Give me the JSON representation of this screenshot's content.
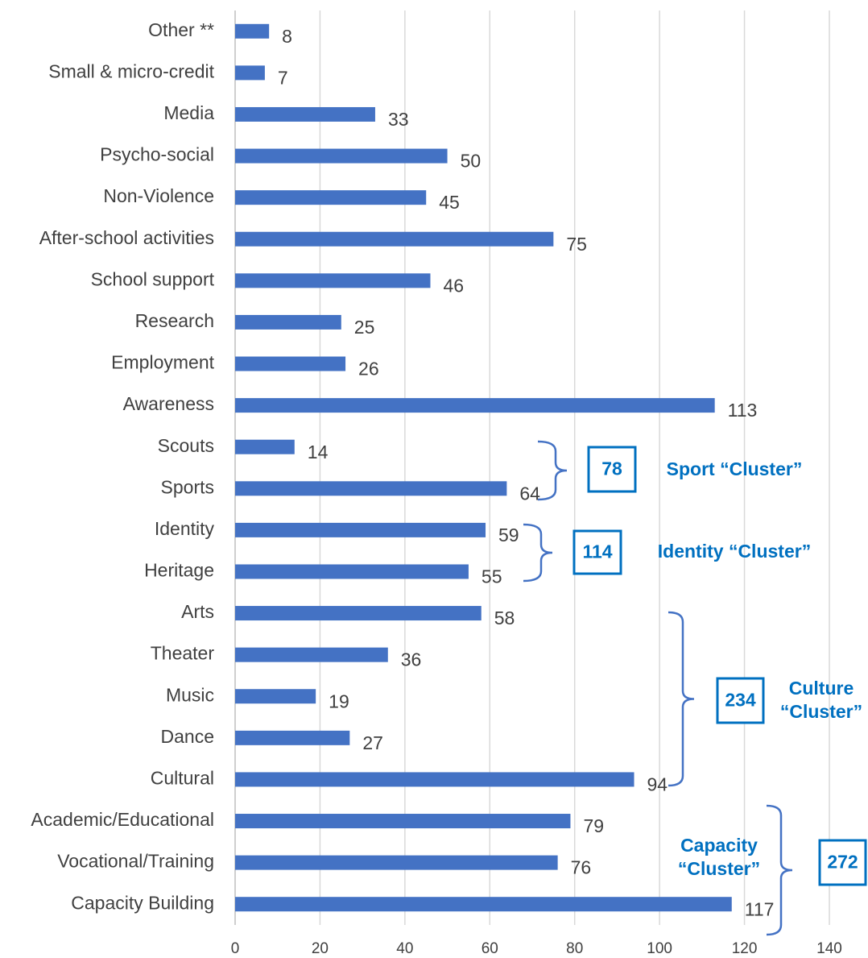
{
  "chart_data": {
    "type": "bar",
    "orientation": "horizontal",
    "categories": [
      "Other **",
      "Small & micro-credit",
      "Media",
      "Psycho-social",
      "Non-Violence",
      "After-school activities",
      "School support",
      "Research",
      "Employment",
      "Awareness",
      "Scouts",
      "Sports",
      "Identity",
      "Heritage",
      "Arts",
      "Theater",
      "Music",
      "Dance",
      "Cultural",
      "Academic/Educational",
      "Vocational/Training",
      "Capacity Building"
    ],
    "values": [
      8,
      7,
      33,
      50,
      45,
      75,
      46,
      25,
      26,
      113,
      14,
      64,
      59,
      55,
      58,
      36,
      19,
      27,
      94,
      79,
      76,
      117
    ],
    "color": "#4472c4",
    "xlim": [
      0,
      140
    ],
    "xticks": [
      0,
      20,
      40,
      60,
      80,
      100,
      120,
      140
    ],
    "grid": true,
    "annotations": [
      {
        "total": 78,
        "lines": [
          "Sport “Cluster”"
        ]
      },
      {
        "total": 114,
        "lines": [
          "Identity “Cluster”"
        ]
      },
      {
        "total": 234,
        "lines": [
          "Culture",
          "“Cluster”"
        ]
      },
      {
        "total": 272,
        "lines": [
          "Capacity",
          "“Cluster”"
        ]
      }
    ]
  }
}
